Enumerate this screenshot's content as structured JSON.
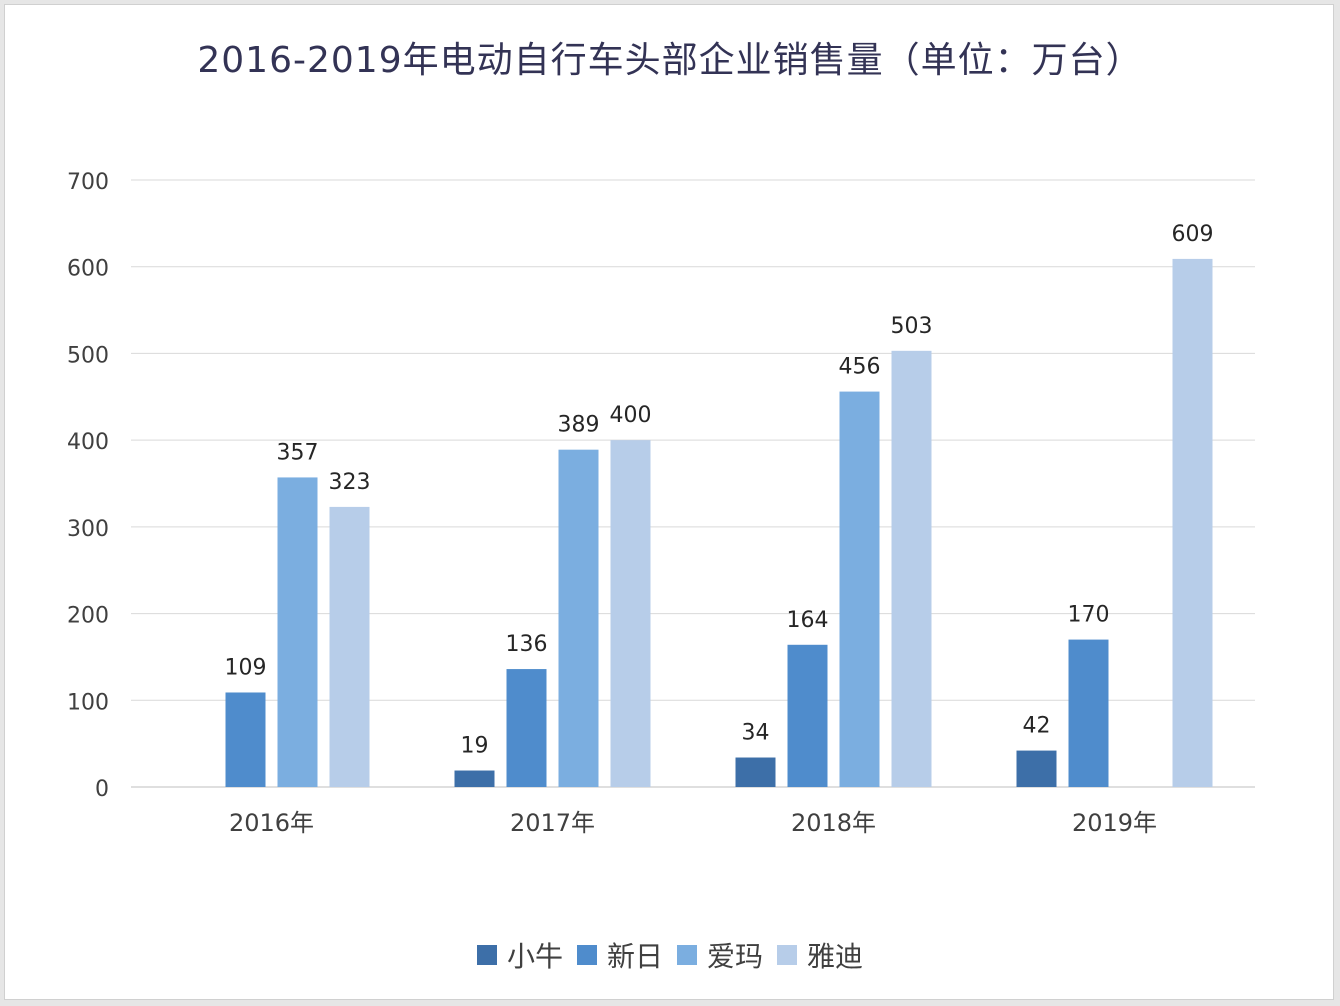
{
  "chart_data": {
    "type": "bar",
    "title": "2016-2019年电动自行车头部企业销售量（单位：万台）",
    "categories": [
      "2016年",
      "2017年",
      "2018年",
      "2019年"
    ],
    "series": [
      {
        "name": "小牛",
        "color": "#3d6fa8",
        "values": [
          null,
          19,
          34,
          42
        ]
      },
      {
        "name": "新日",
        "color": "#4f8ccc",
        "values": [
          109,
          136,
          164,
          170
        ]
      },
      {
        "name": "爱玛",
        "color": "#7baee0",
        "values": [
          357,
          389,
          456,
          null
        ]
      },
      {
        "name": "雅迪",
        "color": "#b7cde9",
        "values": [
          323,
          400,
          503,
          609
        ]
      }
    ],
    "ylim": [
      0,
      700
    ],
    "yticks": [
      0,
      100,
      200,
      300,
      400,
      500,
      600,
      700
    ],
    "grid": true,
    "legend_position": "bottom",
    "xlabel": "",
    "ylabel": ""
  }
}
